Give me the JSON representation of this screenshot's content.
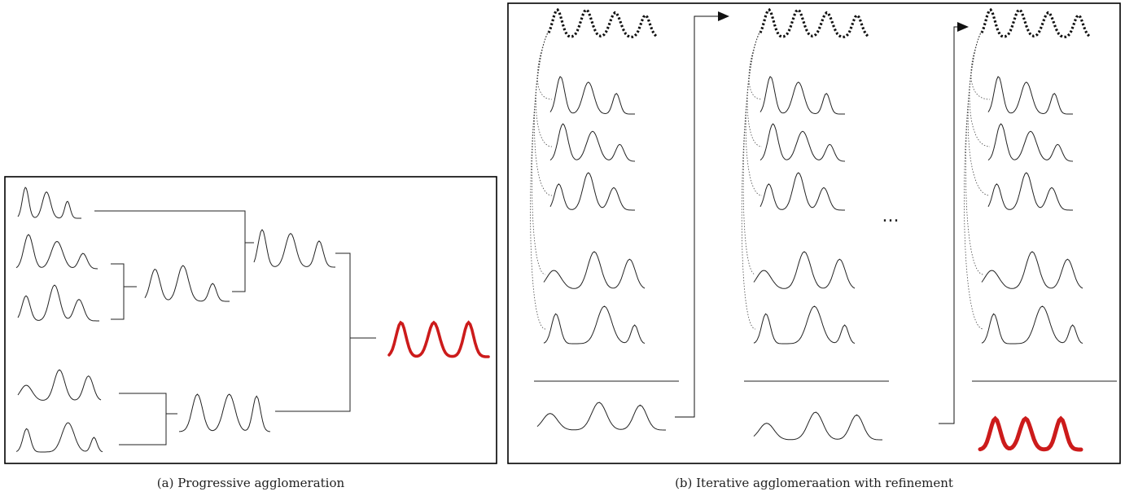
{
  "panel_a": {
    "caption": "(a) Progressive agglomeration"
  },
  "panel_b": {
    "caption": "(b) Iterative agglomeraation with refinement",
    "ellipsis": "..."
  },
  "colors": {
    "line": "#222222",
    "result": "#cc1b1b",
    "frame": "#000000"
  }
}
